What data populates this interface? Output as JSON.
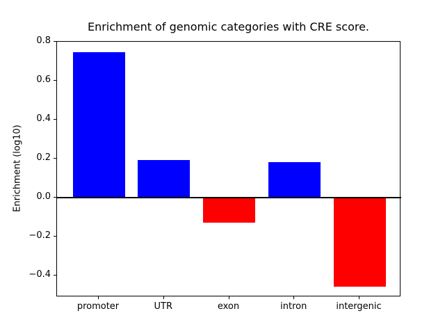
{
  "chart_data": {
    "type": "bar",
    "title": "Enrichment of genomic categories with CRE score.",
    "ylabel": "Enrichment (log10)",
    "xlabel": "",
    "categories": [
      "promoter",
      "UTR",
      "exon",
      "intron",
      "intergenic"
    ],
    "values": [
      0.745,
      0.193,
      -0.128,
      0.182,
      -0.455
    ],
    "bar_colors": [
      "#0000ff",
      "#0000ff",
      "#ff0000",
      "#0000ff",
      "#ff0000"
    ],
    "positive_color": "#0000ff",
    "negative_color": "#ff0000",
    "ylim": [
      -0.51,
      0.8
    ],
    "yticks": [
      -0.4,
      -0.2,
      0.0,
      0.2,
      0.4,
      0.6,
      0.8
    ],
    "ytick_labels": [
      "−0.4",
      "−0.2",
      "0.0",
      "0.2",
      "0.4",
      "0.6",
      "0.8"
    ],
    "baseline": 0,
    "grid": false,
    "legend": null,
    "axis_color": "#000000",
    "background_color": "#ffffff"
  }
}
